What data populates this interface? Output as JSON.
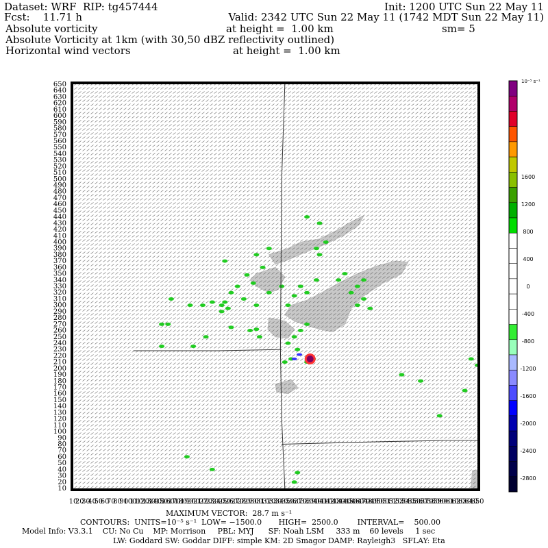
{
  "header": {
    "dataset_line": "Dataset: WRF  RIP: tg457444",
    "init_line": "Init: 1200 UTC Sun 22 May 11",
    "fcst_line": "Fcst:    11.71 h",
    "valid_line": "Valid: 2342 UTC Sun 22 May 11 (1742 MDT Sun 22 May 11)",
    "field1_name": "Absolute vorticity",
    "field1_height": "at height =  1.00 km",
    "field1_sm": "sm= 5",
    "field2_name": "Absolute Vorticity at 1km (with 30,50 dBZ reflectivity outlined)",
    "field3_name": "Horizontal wind vectors",
    "field3_height": "at height =  1.00 km"
  },
  "footer": {
    "max_vector": "MAXIMUM VECTOR:  28.7 m s⁻¹",
    "contours": "CONTOURS:  UNITS=10⁻⁵ s⁻¹  LOW= −1500.0       HIGH=  2500.0        INTERVAL=    500.00",
    "model_info": "Model Info: V3.3.1    CU: No Cu    MP: Morrison     PBL: MYJ      SF: Noah LSM     333 m    60 levels     1 sec",
    "model_info2": "LW: Goddard SW: Goddar DIFF: simple KM: 2D Smagor DAMP: Rayleigh3   SFLAY: Eta"
  },
  "chart_data": {
    "type": "heatmap",
    "title": "Absolute Vorticity at 1km (with 30,50 dBZ reflectivity outlined)",
    "x_ticks": [
      10,
      20,
      30,
      40,
      50,
      60,
      70,
      80,
      90,
      100,
      110,
      120,
      130,
      140,
      150,
      160,
      170,
      180,
      190,
      200,
      210,
      220,
      230,
      240,
      250,
      260,
      270,
      280,
      290,
      300,
      310,
      320,
      330,
      340,
      350,
      360,
      370,
      380,
      390,
      400,
      410,
      420,
      430,
      440,
      450,
      460,
      470,
      480,
      490,
      500,
      510,
      520,
      530,
      540,
      550,
      560,
      570,
      580,
      590,
      600,
      610,
      620,
      630,
      640,
      650
    ],
    "y_ticks": [
      10,
      20,
      30,
      40,
      50,
      60,
      70,
      80,
      90,
      100,
      110,
      120,
      130,
      140,
      150,
      160,
      170,
      180,
      190,
      200,
      210,
      220,
      230,
      240,
      250,
      260,
      270,
      280,
      290,
      300,
      310,
      320,
      330,
      340,
      350,
      360,
      370,
      380,
      390,
      400,
      410,
      420,
      430,
      440,
      450,
      460,
      470,
      480,
      490,
      500,
      510,
      520,
      530,
      540,
      550,
      560,
      570,
      580,
      590,
      600,
      610,
      620,
      630,
      640,
      650
    ],
    "xlim": [
      10,
      650
    ],
    "ylim": [
      10,
      650
    ],
    "colorbar": {
      "units": "10⁻⁵ s⁻¹",
      "labels": [
        "1600",
        "1200",
        "800",
        "400",
        "0",
        "-400",
        "-800",
        "-1200",
        "-1600",
        "-2000",
        "-2400",
        "-2800"
      ],
      "label_values": [
        1600,
        1200,
        800,
        400,
        0,
        -400,
        -800,
        -1200,
        -1600,
        -2000,
        -2400,
        -2800
      ],
      "colors": [
        "#800080",
        "#b0006a",
        "#e0002a",
        "#ff5500",
        "#ff9900",
        "#c0c800",
        "#8ac000",
        "#3aa000",
        "#00b000",
        "#00dd00",
        "#ffffff",
        "#ffffff",
        "#ffffff",
        "#ffffff",
        "#ffffff",
        "#ffffff",
        "#33ee33",
        "#99ffbb",
        "#a9b9ff",
        "#8a8aff",
        "#4c4cff",
        "#0000ff",
        "#0000b0",
        "#00007a",
        "#000060",
        "#00004a",
        "#000030"
      ],
      "max": 3000,
      "min": -3000
    },
    "reflectivity_regions": [
      {
        "kind": "grey",
        "points": [
          [
            320,
            380
          ],
          [
            350,
            390
          ],
          [
            370,
            400
          ],
          [
            400,
            405
          ],
          [
            430,
            420
          ],
          [
            450,
            432
          ],
          [
            470,
            442
          ],
          [
            462,
            427
          ],
          [
            440,
            412
          ],
          [
            410,
            397
          ],
          [
            380,
            385
          ],
          [
            350,
            372
          ],
          [
            330,
            365
          ]
        ]
      },
      {
        "kind": "grey",
        "points": [
          [
            300,
            350
          ],
          [
            330,
            360
          ],
          [
            345,
            345
          ],
          [
            335,
            325
          ],
          [
            320,
            320
          ],
          [
            300,
            330
          ],
          [
            290,
            340
          ]
        ]
      },
      {
        "kind": "grey",
        "points": [
          [
            380,
            308
          ],
          [
            400,
            318
          ],
          [
            430,
            335
          ],
          [
            460,
            350
          ],
          [
            490,
            362
          ],
          [
            520,
            370
          ],
          [
            540,
            368
          ],
          [
            530,
            350
          ],
          [
            500,
            335
          ],
          [
            470,
            315
          ],
          [
            450,
            295
          ],
          [
            440,
            270
          ],
          [
            420,
            258
          ],
          [
            400,
            262
          ],
          [
            380,
            268
          ],
          [
            360,
            275
          ],
          [
            345,
            285
          ],
          [
            355,
            300
          ]
        ]
      },
      {
        "kind": "grey",
        "points": [
          [
            320,
            280
          ],
          [
            345,
            275
          ],
          [
            360,
            262
          ],
          [
            350,
            248
          ],
          [
            330,
            250
          ],
          [
            318,
            262
          ]
        ]
      },
      {
        "kind": "grey",
        "points": [
          [
            330,
            175
          ],
          [
            355,
            182
          ],
          [
            365,
            170
          ],
          [
            350,
            160
          ],
          [
            332,
            163
          ]
        ]
      },
      {
        "kind": "grey",
        "points": [
          [
            640,
            10
          ],
          [
            655,
            10
          ],
          [
            655,
            40
          ],
          [
            642,
            38
          ]
        ]
      }
    ],
    "vorticity_positive": [
      [
        310,
        360
      ],
      [
        285,
        348
      ],
      [
        295,
        335
      ],
      [
        270,
        330
      ],
      [
        260,
        320
      ],
      [
        250,
        305
      ],
      [
        255,
        295
      ],
      [
        280,
        310
      ],
      [
        300,
        300
      ],
      [
        320,
        320
      ],
      [
        340,
        330
      ],
      [
        360,
        315
      ],
      [
        370,
        330
      ],
      [
        380,
        320
      ],
      [
        165,
        310
      ],
      [
        150,
        270
      ],
      [
        195,
        300
      ],
      [
        230,
        305
      ],
      [
        245,
        300
      ],
      [
        290,
        260
      ],
      [
        300,
        262
      ],
      [
        305,
        250
      ],
      [
        260,
        265
      ],
      [
        350,
        240
      ],
      [
        360,
        250
      ],
      [
        370,
        260
      ],
      [
        380,
        270
      ],
      [
        460,
        300
      ],
      [
        470,
        310
      ],
      [
        480,
        295
      ],
      [
        470,
        340
      ],
      [
        460,
        330
      ],
      [
        450,
        320
      ],
      [
        440,
        350
      ],
      [
        430,
        340
      ],
      [
        400,
        380
      ],
      [
        395,
        390
      ],
      [
        410,
        400
      ],
      [
        395,
        340
      ],
      [
        350,
        300
      ],
      [
        365,
        230
      ],
      [
        380,
        210
      ],
      [
        390,
        215
      ],
      [
        345,
        210
      ],
      [
        355,
        215
      ],
      [
        640,
        215
      ],
      [
        650,
        205
      ],
      [
        695,
        185
      ],
      [
        670,
        140
      ],
      [
        590,
        125
      ],
      [
        530,
        190
      ],
      [
        560,
        180
      ],
      [
        630,
        165
      ],
      [
        230,
        40
      ],
      [
        190,
        60
      ],
      [
        360,
        20
      ],
      [
        365,
        35
      ],
      [
        250,
        370
      ],
      [
        300,
        380
      ],
      [
        320,
        390
      ],
      [
        400,
        430
      ],
      [
        380,
        440
      ],
      [
        220,
        250
      ],
      [
        200,
        235
      ],
      [
        150,
        235
      ],
      [
        215,
        300
      ],
      [
        245,
        290
      ],
      [
        160,
        270
      ]
    ],
    "vorticity_peak": {
      "x": 385,
      "y": 215,
      "value": "> 2500"
    },
    "vorticity_negative": [
      [
        360,
        215
      ],
      [
        368,
        222
      ]
    ],
    "boundary_lines": [
      {
        "points": [
          [
            105,
            228
          ],
          [
            240,
            228
          ],
          [
            340,
            230
          ]
        ]
      },
      {
        "points": [
          [
            345,
            650
          ],
          [
            340,
            500
          ],
          [
            338,
            230
          ],
          [
            340,
            120
          ],
          [
            345,
            10
          ]
        ]
      },
      {
        "points": [
          [
            340,
            80
          ],
          [
            420,
            82
          ],
          [
            500,
            84
          ],
          [
            600,
            86
          ],
          [
            700,
            86
          ]
        ]
      }
    ]
  }
}
